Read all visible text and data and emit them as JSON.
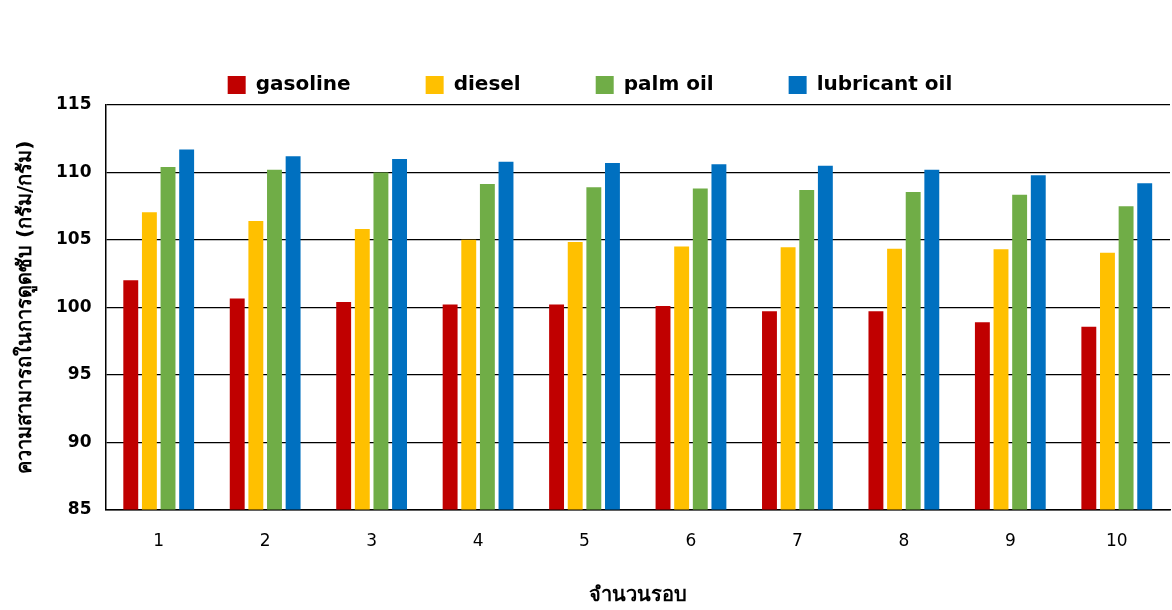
{
  "chart_data": {
    "type": "bar",
    "xlabel": "จำนวนรอบ",
    "ylabel": "ความสามารถในการดูดซับ (กรัม/กรัม)",
    "categories": [
      "1",
      "2",
      "3",
      "4",
      "5",
      "6",
      "7",
      "8",
      "9",
      "10"
    ],
    "series": [
      {
        "name": "gasoline",
        "color": "#c00000",
        "values": [
          102.0,
          100.65,
          100.4,
          100.2,
          100.2,
          100.1,
          99.7,
          99.7,
          98.9,
          98.55
        ]
      },
      {
        "name": "diesel",
        "color": "#ffc000",
        "values": [
          107.05,
          106.4,
          105.8,
          105.0,
          104.85,
          104.5,
          104.45,
          104.35,
          104.3,
          104.05
        ]
      },
      {
        "name": "palm oil",
        "color": "#70ad47",
        "values": [
          110.4,
          110.2,
          110.0,
          109.15,
          108.9,
          108.8,
          108.7,
          108.55,
          108.35,
          107.5
        ]
      },
      {
        "name": "lubricant oil",
        "color": "#0070c0",
        "values": [
          111.7,
          111.2,
          111.0,
          110.8,
          110.7,
          110.6,
          110.5,
          110.2,
          109.8,
          109.2
        ]
      }
    ],
    "ylim": [
      85,
      115
    ],
    "yticks": [
      85,
      90,
      95,
      100,
      105,
      110,
      115
    ],
    "grid": "y",
    "legend": "top"
  }
}
